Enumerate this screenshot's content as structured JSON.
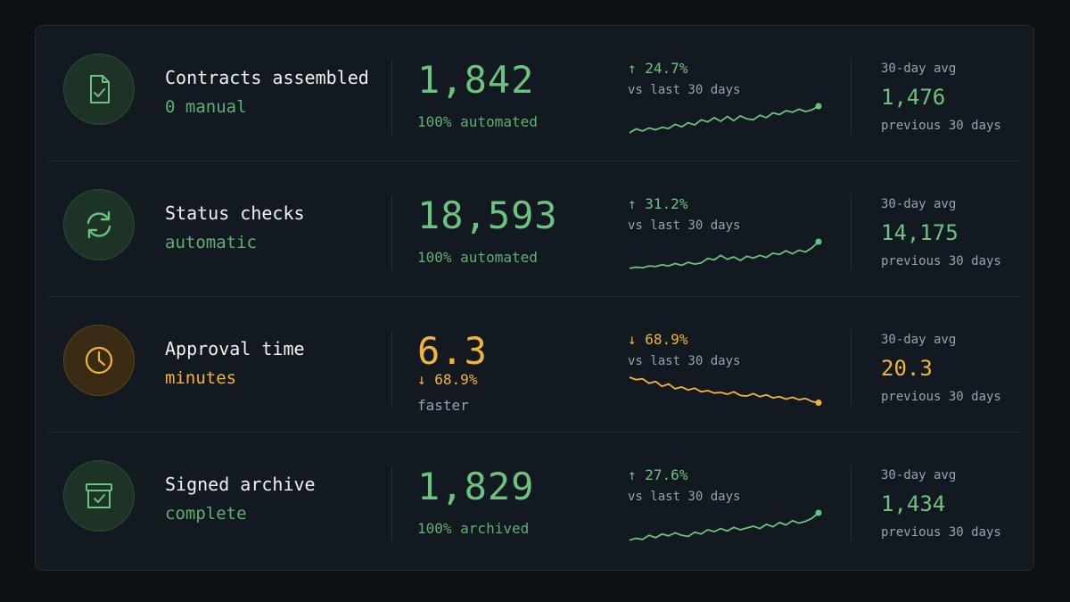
{
  "colors": {
    "green": "#6cc27f",
    "amber": "#f0b43a",
    "muted": "#98a2ad"
  },
  "rows": [
    {
      "icon": "document-check-icon",
      "accent": "green",
      "title": "Contracts assembled",
      "subtitle": "0 manual",
      "value": "1,842",
      "value_sub": "100% automated",
      "change_arrow": "↑",
      "change": "24.7%",
      "change_label": "vs last 30 days",
      "avg_label": "30-day avg",
      "avg_value": "1,476",
      "avg_sub": "previous 30 days",
      "trend": [
        0.12,
        0.25,
        0.18,
        0.28,
        0.22,
        0.3,
        0.26,
        0.4,
        0.32,
        0.45,
        0.38,
        0.55,
        0.48,
        0.62,
        0.5,
        0.66,
        0.52,
        0.68,
        0.58,
        0.55,
        0.7,
        0.62,
        0.78,
        0.72,
        0.85,
        0.8,
        0.9,
        0.82,
        0.88,
        1.0
      ]
    },
    {
      "icon": "refresh-icon",
      "accent": "green",
      "title": "Status checks",
      "subtitle": "automatic",
      "value": "18,593",
      "value_sub": "100% automated",
      "change_arrow": "↑",
      "change": "31.2%",
      "change_label": "vs last 30 days",
      "avg_label": "30-day avg",
      "avg_value": "14,175",
      "avg_sub": "previous 30 days",
      "trend": [
        0.12,
        0.16,
        0.14,
        0.2,
        0.18,
        0.24,
        0.2,
        0.28,
        0.22,
        0.32,
        0.26,
        0.3,
        0.45,
        0.4,
        0.55,
        0.42,
        0.5,
        0.38,
        0.52,
        0.46,
        0.55,
        0.48,
        0.62,
        0.58,
        0.7,
        0.6,
        0.72,
        0.66,
        0.8,
        1.0
      ]
    },
    {
      "icon": "clock-icon",
      "accent": "amber",
      "title": "Approval time",
      "subtitle": "minutes",
      "value": "6.3",
      "value_sub_arrow": "↓",
      "value_sub": "68.9%",
      "value_sub2": "faster",
      "change_arrow": "↓",
      "change": "68.9%",
      "change_label": "vs last 30 days",
      "avg_label": "30-day avg",
      "avg_value": "20.3",
      "avg_sub": "previous 30 days",
      "trend": [
        1.0,
        0.92,
        0.95,
        0.8,
        0.86,
        0.7,
        0.78,
        0.62,
        0.68,
        0.58,
        0.64,
        0.52,
        0.56,
        0.48,
        0.5,
        0.44,
        0.52,
        0.4,
        0.38,
        0.46,
        0.36,
        0.42,
        0.32,
        0.36,
        0.28,
        0.34,
        0.26,
        0.3,
        0.2,
        0.16
      ]
    },
    {
      "icon": "archive-check-icon",
      "accent": "green",
      "title": "Signed archive",
      "subtitle": "complete",
      "value": "1,829",
      "value_sub": "100% archived",
      "change_arrow": "↑",
      "change": "27.6%",
      "change_label": "vs last 30 days",
      "avg_label": "30-day avg",
      "avg_value": "1,434",
      "avg_sub": "previous 30 days",
      "trend": [
        0.1,
        0.16,
        0.12,
        0.26,
        0.18,
        0.3,
        0.24,
        0.34,
        0.26,
        0.22,
        0.36,
        0.3,
        0.44,
        0.38,
        0.48,
        0.4,
        0.52,
        0.44,
        0.5,
        0.56,
        0.48,
        0.62,
        0.54,
        0.68,
        0.6,
        0.74,
        0.66,
        0.72,
        0.82,
        1.0
      ]
    }
  ]
}
